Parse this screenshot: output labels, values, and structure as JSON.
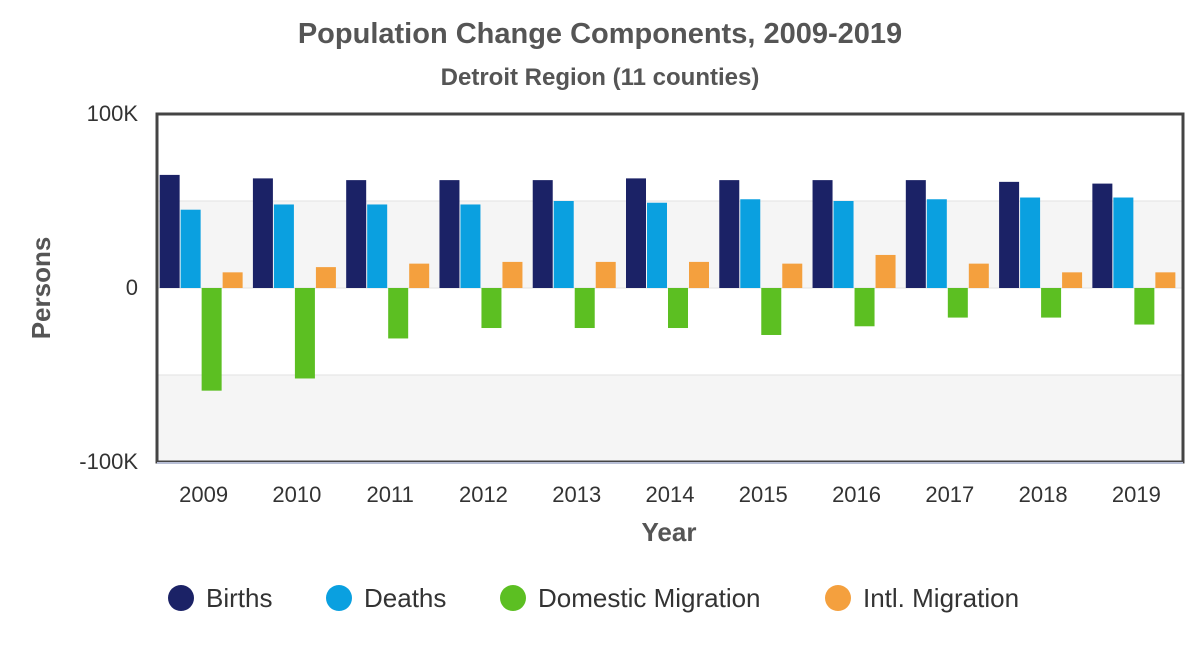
{
  "chart_data": {
    "type": "bar",
    "title": "Population Change Components, 2009-2019",
    "subtitle": "Detroit Region (11 counties)",
    "xlabel": "Year",
    "ylabel": "Persons",
    "ylim": [
      -100000,
      100000
    ],
    "yticks": [
      {
        "value": 100000,
        "label": "100K"
      },
      {
        "value": 0,
        "label": "0"
      },
      {
        "value": -100000,
        "label": "-100K"
      }
    ],
    "grid": true,
    "legend_position": "bottom",
    "categories": [
      "2009",
      "2010",
      "2011",
      "2012",
      "2013",
      "2014",
      "2015",
      "2016",
      "2017",
      "2018",
      "2019"
    ],
    "series": [
      {
        "name": "Births",
        "color": "#1b2266",
        "values": [
          65000,
          63000,
          62000,
          62000,
          62000,
          63000,
          62000,
          62000,
          62000,
          61000,
          60000
        ]
      },
      {
        "name": "Deaths",
        "color": "#0aa0e0",
        "values": [
          45000,
          48000,
          48000,
          48000,
          50000,
          49000,
          51000,
          50000,
          51000,
          52000,
          52000
        ]
      },
      {
        "name": "Domestic Migration",
        "color": "#5cbf22",
        "values": [
          -59000,
          -52000,
          -29000,
          -23000,
          -23000,
          -23000,
          -27000,
          -22000,
          -17000,
          -17000,
          -21000
        ]
      },
      {
        "name": "Intl. Migration",
        "color": "#f4a03e",
        "values": [
          9000,
          12000,
          14000,
          15000,
          15000,
          15000,
          14000,
          19000,
          14000,
          9000,
          9000
        ]
      }
    ]
  }
}
